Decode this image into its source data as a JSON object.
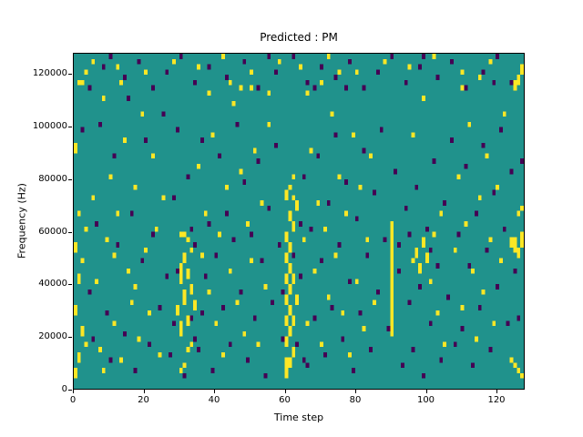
{
  "title": "Predicted : PM",
  "chart_data": {
    "type": "heatmap",
    "title": "Predicted : PM",
    "xlabel": "Time step",
    "ylabel": "Frequency (Hz)",
    "xlim": [
      0,
      128
    ],
    "ylim": [
      0,
      128000
    ],
    "xticks": [
      0,
      20,
      40,
      60,
      80,
      100,
      120
    ],
    "yticks": [
      0,
      20000,
      40000,
      60000,
      80000,
      100000,
      120000
    ],
    "grid": false,
    "legend": "none",
    "cell_size": {
      "x_units": 1,
      "y_units": 2000
    },
    "colors": {
      "background": "#20928c",
      "high": "#fde725",
      "low": "#440154"
    },
    "value_legend": {
      "background": "mid/neutral",
      "high": "active bin",
      "low": "suppressed bin"
    },
    "high_cells": [
      [
        0,
        2
      ],
      [
        0,
        3
      ],
      [
        0,
        14
      ],
      [
        0,
        15
      ],
      [
        0,
        26
      ],
      [
        0,
        27
      ],
      [
        0,
        45
      ],
      [
        0,
        46
      ],
      [
        1,
        5
      ],
      [
        1,
        6
      ],
      [
        1,
        20
      ],
      [
        1,
        21
      ],
      [
        1,
        33
      ],
      [
        1,
        58
      ],
      [
        2,
        10
      ],
      [
        2,
        11
      ],
      [
        2,
        24
      ],
      [
        2,
        58
      ],
      [
        3,
        8
      ],
      [
        3,
        30
      ],
      [
        3,
        60
      ],
      [
        5,
        36
      ],
      [
        5,
        62
      ],
      [
        6,
        20
      ],
      [
        7,
        7
      ],
      [
        8,
        3
      ],
      [
        8,
        55
      ],
      [
        9,
        28
      ],
      [
        10,
        40
      ],
      [
        11,
        12
      ],
      [
        11,
        25
      ],
      [
        12,
        33
      ],
      [
        12,
        61
      ],
      [
        13,
        5
      ],
      [
        13,
        58
      ],
      [
        14,
        47
      ],
      [
        15,
        22
      ],
      [
        16,
        16
      ],
      [
        17,
        19
      ],
      [
        17,
        38
      ],
      [
        18,
        9
      ],
      [
        19,
        52
      ],
      [
        20,
        26
      ],
      [
        20,
        60
      ],
      [
        21,
        14
      ],
      [
        22,
        44
      ],
      [
        23,
        30
      ],
      [
        24,
        6
      ],
      [
        25,
        36
      ],
      [
        28,
        62
      ],
      [
        29,
        14
      ],
      [
        29,
        15
      ],
      [
        30,
        3
      ],
      [
        30,
        10
      ],
      [
        30,
        11
      ],
      [
        30,
        12
      ],
      [
        30,
        20
      ],
      [
        30,
        21
      ],
      [
        30,
        22
      ],
      [
        30,
        23
      ],
      [
        30,
        29
      ],
      [
        31,
        4
      ],
      [
        31,
        16
      ],
      [
        31,
        17
      ],
      [
        31,
        18
      ],
      [
        31,
        24
      ],
      [
        31,
        25
      ],
      [
        31,
        29
      ],
      [
        32,
        7
      ],
      [
        32,
        12
      ],
      [
        32,
        13
      ],
      [
        32,
        21
      ],
      [
        32,
        22
      ],
      [
        32,
        28
      ],
      [
        33,
        8
      ],
      [
        33,
        18
      ],
      [
        33,
        19
      ],
      [
        33,
        26
      ],
      [
        34,
        15
      ],
      [
        34,
        16
      ],
      [
        35,
        42
      ],
      [
        35,
        61
      ],
      [
        36,
        25
      ],
      [
        37,
        33
      ],
      [
        38,
        18
      ],
      [
        38,
        56
      ],
      [
        39,
        48
      ],
      [
        40,
        12
      ],
      [
        41,
        29
      ],
      [
        42,
        6
      ],
      [
        42,
        63
      ],
      [
        43,
        38
      ],
      [
        44,
        22
      ],
      [
        44,
        58
      ],
      [
        45,
        54
      ],
      [
        46,
        16
      ],
      [
        47,
        41
      ],
      [
        47,
        57
      ],
      [
        48,
        10
      ],
      [
        49,
        31
      ],
      [
        50,
        24
      ],
      [
        50,
        57
      ],
      [
        50,
        60
      ],
      [
        51,
        45
      ],
      [
        52,
        8
      ],
      [
        53,
        35
      ],
      [
        54,
        19
      ],
      [
        55,
        50
      ],
      [
        55,
        56
      ],
      [
        58,
        62
      ],
      [
        60,
        2
      ],
      [
        60,
        3
      ],
      [
        60,
        4
      ],
      [
        60,
        5
      ],
      [
        60,
        8
      ],
      [
        60,
        9
      ],
      [
        60,
        12
      ],
      [
        60,
        13
      ],
      [
        60,
        16
      ],
      [
        60,
        17
      ],
      [
        60,
        20
      ],
      [
        60,
        21
      ],
      [
        60,
        24
      ],
      [
        60,
        25
      ],
      [
        60,
        28
      ],
      [
        60,
        29
      ],
      [
        60,
        36
      ],
      [
        60,
        37
      ],
      [
        61,
        4
      ],
      [
        61,
        5
      ],
      [
        61,
        10
      ],
      [
        61,
        11
      ],
      [
        61,
        14
      ],
      [
        61,
        15
      ],
      [
        61,
        18
      ],
      [
        61,
        19
      ],
      [
        61,
        22
      ],
      [
        61,
        23
      ],
      [
        61,
        26
      ],
      [
        61,
        27
      ],
      [
        61,
        32
      ],
      [
        61,
        33
      ],
      [
        61,
        38
      ],
      [
        62,
        6
      ],
      [
        62,
        7
      ],
      [
        62,
        12
      ],
      [
        62,
        13
      ],
      [
        62,
        20
      ],
      [
        62,
        21
      ],
      [
        62,
        30
      ],
      [
        62,
        31
      ],
      [
        62,
        36
      ],
      [
        62,
        40
      ],
      [
        63,
        16
      ],
      [
        63,
        17
      ],
      [
        63,
        34
      ],
      [
        63,
        35
      ],
      [
        64,
        61
      ],
      [
        65,
        28
      ],
      [
        66,
        12
      ],
      [
        66,
        56
      ],
      [
        67,
        45
      ],
      [
        68,
        22
      ],
      [
        69,
        35
      ],
      [
        70,
        8
      ],
      [
        70,
        58
      ],
      [
        71,
        30
      ],
      [
        72,
        17
      ],
      [
        72,
        63
      ],
      [
        73,
        52
      ],
      [
        74,
        25
      ],
      [
        75,
        40
      ],
      [
        75,
        60
      ],
      [
        76,
        14
      ],
      [
        77,
        33
      ],
      [
        78,
        6
      ],
      [
        79,
        48
      ],
      [
        80,
        20
      ],
      [
        80,
        60
      ],
      [
        81,
        38
      ],
      [
        82,
        11
      ],
      [
        83,
        28
      ],
      [
        84,
        44
      ],
      [
        85,
        16
      ],
      [
        88,
        62
      ],
      [
        90,
        10
      ],
      [
        90,
        11
      ],
      [
        90,
        12
      ],
      [
        90,
        13
      ],
      [
        90,
        14
      ],
      [
        90,
        15
      ],
      [
        90,
        16
      ],
      [
        90,
        17
      ],
      [
        90,
        18
      ],
      [
        90,
        19
      ],
      [
        90,
        20
      ],
      [
        90,
        21
      ],
      [
        90,
        22
      ],
      [
        90,
        23
      ],
      [
        90,
        24
      ],
      [
        90,
        25
      ],
      [
        90,
        26
      ],
      [
        90,
        27
      ],
      [
        90,
        28
      ],
      [
        90,
        29
      ],
      [
        90,
        30
      ],
      [
        90,
        31
      ],
      [
        95,
        61
      ],
      [
        96,
        24
      ],
      [
        96,
        48
      ],
      [
        97,
        25
      ],
      [
        97,
        26
      ],
      [
        98,
        22
      ],
      [
        98,
        23
      ],
      [
        99,
        27
      ],
      [
        99,
        28
      ],
      [
        99,
        55
      ],
      [
        100,
        24
      ],
      [
        100,
        25
      ],
      [
        101,
        20
      ],
      [
        102,
        29
      ],
      [
        102,
        63
      ],
      [
        103,
        14
      ],
      [
        104,
        33
      ],
      [
        105,
        8
      ],
      [
        108,
        26
      ],
      [
        109,
        40
      ],
      [
        110,
        15
      ],
      [
        110,
        57
      ],
      [
        110,
        60
      ],
      [
        111,
        31
      ],
      [
        112,
        50
      ],
      [
        113,
        22
      ],
      [
        114,
        9
      ],
      [
        115,
        36
      ],
      [
        115,
        59
      ],
      [
        116,
        18
      ],
      [
        117,
        44
      ],
      [
        118,
        28
      ],
      [
        118,
        62
      ],
      [
        119,
        12
      ],
      [
        120,
        38
      ],
      [
        121,
        24
      ],
      [
        122,
        52
      ],
      [
        124,
        5
      ],
      [
        124,
        27
      ],
      [
        124,
        28
      ],
      [
        125,
        4
      ],
      [
        125,
        26
      ],
      [
        125,
        27
      ],
      [
        125,
        28
      ],
      [
        125,
        57
      ],
      [
        125,
        58
      ],
      [
        126,
        3
      ],
      [
        126,
        25
      ],
      [
        126,
        26
      ],
      [
        126,
        33
      ],
      [
        126,
        58
      ],
      [
        126,
        59
      ],
      [
        127,
        2
      ],
      [
        127,
        27
      ],
      [
        127,
        28
      ],
      [
        127,
        29
      ],
      [
        127,
        34
      ],
      [
        127,
        60
      ],
      [
        127,
        61
      ]
    ],
    "low_cells": [
      [
        2,
        49
      ],
      [
        4,
        18
      ],
      [
        4,
        57
      ],
      [
        5,
        9
      ],
      [
        6,
        31
      ],
      [
        7,
        50
      ],
      [
        8,
        61
      ],
      [
        9,
        14
      ],
      [
        10,
        5
      ],
      [
        10,
        63
      ],
      [
        11,
        44
      ],
      [
        12,
        27
      ],
      [
        14,
        10
      ],
      [
        14,
        59
      ],
      [
        15,
        55
      ],
      [
        16,
        33
      ],
      [
        17,
        3
      ],
      [
        18,
        62
      ],
      [
        19,
        24
      ],
      [
        20,
        47
      ],
      [
        21,
        8
      ],
      [
        22,
        29
      ],
      [
        22,
        57
      ],
      [
        24,
        15
      ],
      [
        25,
        52
      ],
      [
        26,
        21
      ],
      [
        26,
        60
      ],
      [
        27,
        6
      ],
      [
        28,
        12
      ],
      [
        28,
        36
      ],
      [
        29,
        22
      ],
      [
        29,
        49
      ],
      [
        30,
        63
      ],
      [
        31,
        2
      ],
      [
        32,
        40
      ],
      [
        33,
        13
      ],
      [
        33,
        30
      ],
      [
        34,
        9
      ],
      [
        34,
        27
      ],
      [
        34,
        58
      ],
      [
        35,
        7
      ],
      [
        36,
        14
      ],
      [
        36,
        47
      ],
      [
        37,
        21
      ],
      [
        38,
        31
      ],
      [
        38,
        61
      ],
      [
        39,
        3
      ],
      [
        40,
        25
      ],
      [
        41,
        44
      ],
      [
        42,
        15
      ],
      [
        43,
        33
      ],
      [
        43,
        59
      ],
      [
        44,
        8
      ],
      [
        45,
        28
      ],
      [
        46,
        50
      ],
      [
        47,
        18
      ],
      [
        48,
        39
      ],
      [
        48,
        62
      ],
      [
        49,
        5
      ],
      [
        50,
        29
      ],
      [
        51,
        13
      ],
      [
        52,
        43
      ],
      [
        52,
        57
      ],
      [
        53,
        24
      ],
      [
        54,
        2
      ],
      [
        55,
        34
      ],
      [
        55,
        63
      ],
      [
        56,
        16
      ],
      [
        57,
        46
      ],
      [
        57,
        60
      ],
      [
        58,
        27
      ],
      [
        59,
        9
      ],
      [
        59,
        18
      ],
      [
        62,
        25
      ],
      [
        62,
        63
      ],
      [
        63,
        8
      ],
      [
        64,
        21
      ],
      [
        64,
        31
      ],
      [
        65,
        5
      ],
      [
        65,
        40
      ],
      [
        66,
        4
      ],
      [
        66,
        58
      ],
      [
        67,
        30
      ],
      [
        68,
        13
      ],
      [
        68,
        57
      ],
      [
        69,
        44
      ],
      [
        70,
        24
      ],
      [
        70,
        61
      ],
      [
        71,
        6
      ],
      [
        72,
        35
      ],
      [
        73,
        15
      ],
      [
        74,
        48
      ],
      [
        74,
        59
      ],
      [
        75,
        27
      ],
      [
        76,
        9
      ],
      [
        77,
        39
      ],
      [
        77,
        57
      ],
      [
        78,
        20
      ],
      [
        78,
        62
      ],
      [
        79,
        3
      ],
      [
        80,
        32
      ],
      [
        81,
        14
      ],
      [
        82,
        45
      ],
      [
        82,
        57
      ],
      [
        83,
        25
      ],
      [
        84,
        7
      ],
      [
        85,
        37
      ],
      [
        86,
        18
      ],
      [
        86,
        60
      ],
      [
        87,
        49
      ],
      [
        88,
        28
      ],
      [
        89,
        11
      ],
      [
        90,
        63
      ],
      [
        91,
        41
      ],
      [
        92,
        22
      ],
      [
        92,
        27
      ],
      [
        93,
        4
      ],
      [
        94,
        34
      ],
      [
        94,
        58
      ],
      [
        95,
        16
      ],
      [
        95,
        29
      ],
      [
        96,
        7
      ],
      [
        97,
        38
      ],
      [
        98,
        19
      ],
      [
        98,
        61
      ],
      [
        99,
        2
      ],
      [
        99,
        63
      ],
      [
        100,
        30
      ],
      [
        101,
        12
      ],
      [
        101,
        26
      ],
      [
        102,
        43
      ],
      [
        103,
        23
      ],
      [
        103,
        59
      ],
      [
        104,
        5
      ],
      [
        105,
        35
      ],
      [
        106,
        17
      ],
      [
        107,
        47
      ],
      [
        107,
        62
      ],
      [
        108,
        8
      ],
      [
        109,
        29
      ],
      [
        110,
        11
      ],
      [
        111,
        42
      ],
      [
        111,
        57
      ],
      [
        112,
        23
      ],
      [
        113,
        4
      ],
      [
        114,
        33
      ],
      [
        115,
        15
      ],
      [
        116,
        46
      ],
      [
        116,
        60
      ],
      [
        117,
        26
      ],
      [
        118,
        7
      ],
      [
        119,
        37
      ],
      [
        119,
        58
      ],
      [
        120,
        19
      ],
      [
        120,
        63
      ],
      [
        121,
        49
      ],
      [
        122,
        30
      ],
      [
        123,
        12
      ],
      [
        124,
        41
      ],
      [
        124,
        58
      ],
      [
        125,
        22
      ],
      [
        126,
        13
      ],
      [
        127,
        43
      ]
    ]
  }
}
